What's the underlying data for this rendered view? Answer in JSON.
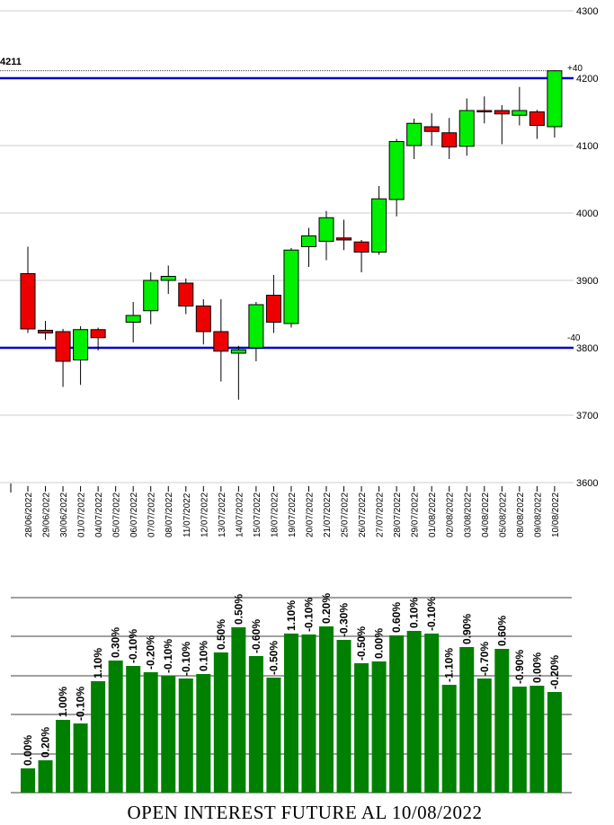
{
  "chart_data": [
    {
      "type": "candlestick",
      "title": "",
      "xlabel": "",
      "ylabel": "",
      "ylim": [
        3600,
        4300
      ],
      "yticks": [
        3600,
        3700,
        3800,
        3900,
        4000,
        4100,
        4200,
        4300
      ],
      "grid": true,
      "colors": {
        "up": "#00ee00",
        "down": "#ee0000",
        "line": "#0000cc",
        "grid": "#cccccc"
      },
      "last_price_label": "4211",
      "last_price": 4211,
      "upper_level": {
        "value": 4200,
        "label": "+40"
      },
      "lower_level": {
        "value": 3800,
        "label": "-40"
      },
      "dates": [
        "28/06/2022",
        "29/06/2022",
        "30/06/2022",
        "01/07/2022",
        "04/07/2022",
        "05/07/2022",
        "06/07/2022",
        "07/07/2022",
        "08/07/2022",
        "11/07/2022",
        "12/07/2022",
        "13/07/2022",
        "14/07/2022",
        "15/07/2022",
        "18/07/2022",
        "19/07/2022",
        "20/07/2022",
        "21/07/2022",
        "25/07/2022",
        "26/07/2022",
        "27/07/2022",
        "28/07/2022",
        "29/07/2022",
        "01/08/2022",
        "02/08/2022",
        "03/08/2022",
        "04/08/2022",
        "05/08/2022",
        "08/08/2022",
        "09/08/2022",
        "10/08/2022"
      ],
      "candles": [
        {
          "o": 3910,
          "h": 3950,
          "l": 3822,
          "c": 3828
        },
        {
          "o": 3826,
          "h": 3840,
          "l": 3812,
          "c": 3822
        },
        {
          "o": 3824,
          "h": 3828,
          "l": 3742,
          "c": 3780
        },
        {
          "o": 3782,
          "h": 3832,
          "l": 3745,
          "c": 3827
        },
        {
          "o": 3827,
          "h": 3830,
          "l": 3796,
          "c": 3815
        },
        null,
        {
          "o": 3838,
          "h": 3868,
          "l": 3808,
          "c": 3848
        },
        {
          "o": 3855,
          "h": 3912,
          "l": 3835,
          "c": 3900
        },
        {
          "o": 3900,
          "h": 3922,
          "l": 3880,
          "c": 3906
        },
        {
          "o": 3896,
          "h": 3903,
          "l": 3850,
          "c": 3862
        },
        {
          "o": 3862,
          "h": 3872,
          "l": 3805,
          "c": 3824
        },
        {
          "o": 3824,
          "h": 3872,
          "l": 3750,
          "c": 3795
        },
        {
          "o": 3792,
          "h": 3803,
          "l": 3723,
          "c": 3797
        },
        {
          "o": 3800,
          "h": 3868,
          "l": 3780,
          "c": 3864
        },
        {
          "o": 3878,
          "h": 3908,
          "l": 3822,
          "c": 3838
        },
        {
          "o": 3836,
          "h": 3948,
          "l": 3830,
          "c": 3945
        },
        {
          "o": 3950,
          "h": 3978,
          "l": 3920,
          "c": 3966
        },
        {
          "o": 3958,
          "h": 4003,
          "l": 3930,
          "c": 3993
        },
        {
          "o": 3963,
          "h": 3990,
          "l": 3945,
          "c": 3960
        },
        {
          "o": 3957,
          "h": 3960,
          "l": 3912,
          "c": 3942
        },
        {
          "o": 3942,
          "h": 4040,
          "l": 3938,
          "c": 4021
        },
        {
          "o": 4020,
          "h": 4110,
          "l": 3995,
          "c": 4106
        },
        {
          "o": 4100,
          "h": 4140,
          "l": 4080,
          "c": 4133
        },
        {
          "o": 4128,
          "h": 4148,
          "l": 4100,
          "c": 4121
        },
        {
          "o": 4119,
          "h": 4141,
          "l": 4080,
          "c": 4098
        },
        {
          "o": 4099,
          "h": 4170,
          "l": 4085,
          "c": 4152
        },
        {
          "o": 4152,
          "h": 4173,
          "l": 4133,
          "c": 4151
        },
        {
          "o": 4152,
          "h": 4160,
          "l": 4102,
          "c": 4147
        },
        {
          "o": 4145,
          "h": 4187,
          "l": 4130,
          "c": 4152
        },
        {
          "o": 4150,
          "h": 4153,
          "l": 4110,
          "c": 4130
        },
        {
          "o": 4128,
          "h": 4212,
          "l": 4112,
          "c": 4211
        }
      ]
    },
    {
      "type": "bar",
      "title": "OPEN INTEREST FUTURE AL 10/08/2022",
      "xlabel": "",
      "ylabel": "",
      "color": "#008000",
      "values": [
        27,
        36,
        81,
        77,
        124,
        147,
        141,
        134,
        130,
        127,
        132,
        156,
        184,
        152,
        128,
        177,
        176,
        185,
        170,
        144,
        146,
        175,
        180,
        177,
        120,
        162,
        127,
        160,
        118,
        119,
        112
      ],
      "labels": [
        "0.00%",
        "0.20%",
        "1.00%",
        "-0.10%",
        "1.10%",
        "0.30%",
        "-0.10%",
        "-0.20%",
        "-0.10%",
        "-0.10%",
        "0.10%",
        "0.50%",
        "0.50%",
        "-0.60%",
        "-0.50%",
        "1.10%",
        "-0.10%",
        "0.20%",
        "-0.30%",
        "-0.50%",
        "0.00%",
        "0.60%",
        "0.10%",
        "-0.10%",
        "-1.10%",
        "0.90%",
        "-0.70%",
        "0.60%",
        "-0.90%",
        "0.00%",
        "-0.20%"
      ]
    }
  ]
}
